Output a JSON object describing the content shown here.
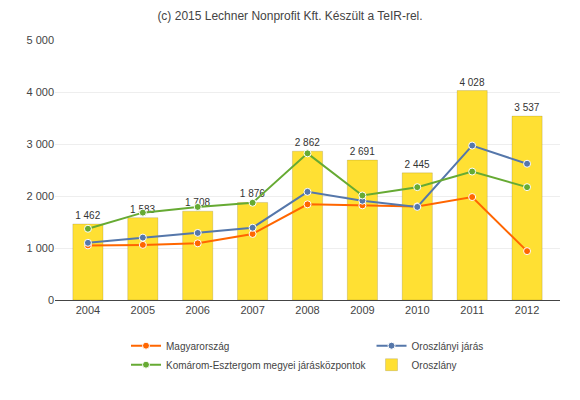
{
  "chart_data": {
    "type": "bar",
    "title": "(c) 2015 Lechner Nonprofit Kft. Készült a TeIR-rel.",
    "x": [
      2004,
      2005,
      2006,
      2007,
      2008,
      2009,
      2010,
      2011,
      2012
    ],
    "series": [
      {
        "name": "Magyarország",
        "type": "line",
        "color": "#FF6600",
        "marker": "circle",
        "line_style": "solid",
        "values": [
          1050,
          1060,
          1090,
          1270,
          1840,
          1820,
          1800,
          1980,
          940
        ]
      },
      {
        "name": "Oroszlányi járás",
        "type": "line",
        "color": "#5577AA",
        "marker": "circle",
        "line_style": "solid",
        "values": [
          1100,
          1200,
          1290,
          1390,
          2080,
          1910,
          1790,
          2970,
          2620
        ]
      },
      {
        "name": "Komárom-Esztergom megyei járásközpontok",
        "type": "line",
        "color": "#66AA33",
        "marker": "circle",
        "line_style": "solid",
        "values": [
          1370,
          1680,
          1790,
          1870,
          2820,
          2010,
          2170,
          2470,
          2170
        ]
      },
      {
        "name": "Oroszlány",
        "type": "bar",
        "color": "#FFE033",
        "data_labels": true,
        "values": [
          1462,
          1583,
          1708,
          1876,
          2862,
          2691,
          2445,
          4028,
          3537
        ],
        "value_labels": [
          "1 462",
          "1 583",
          "1 708",
          "1 876",
          "2 862",
          "2 691",
          "2 445",
          "4 028",
          "3 537"
        ]
      }
    ],
    "xlim": [
      2003.4,
      2012.6
    ],
    "xticks": [
      2004,
      2005,
      2006,
      2007,
      2008,
      2009,
      2010,
      2011,
      2012
    ],
    "ylim": [
      0,
      5000
    ],
    "yticks": [
      0,
      {
        "value": 1000,
        "label": "1 000"
      },
      {
        "value": 2000,
        "label": "2 000"
      },
      {
        "value": 3000,
        "label": "3 000"
      },
      {
        "value": 4000,
        "label": "4 000"
      },
      {
        "value": 5000,
        "label": "5 000"
      }
    ],
    "grid": true,
    "legend": "bottom"
  }
}
